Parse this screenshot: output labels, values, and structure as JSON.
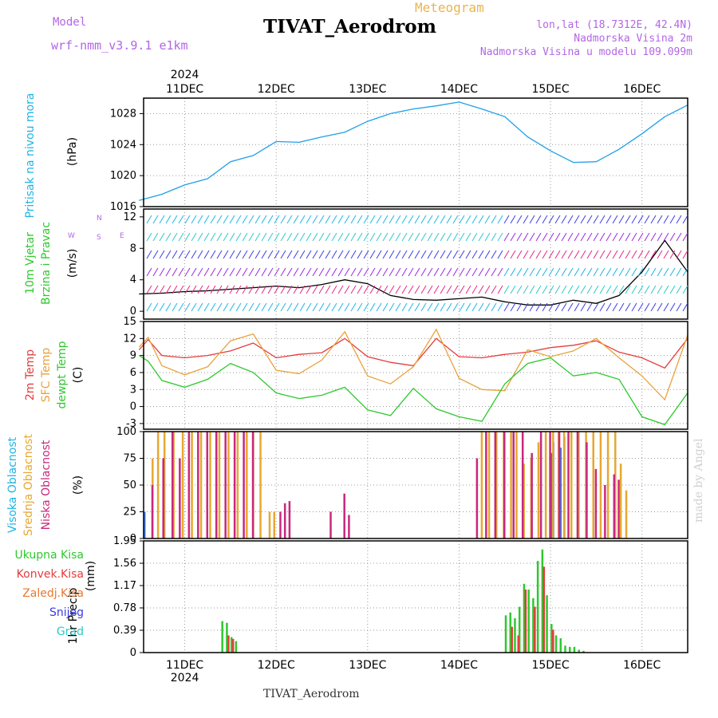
{
  "header": {
    "model_label": "Model",
    "model_version": "wrf-nmm_v3.9.1 e1km",
    "title": "TIVAT_Aerodrom",
    "subtitle": "Meteogram",
    "lonlat": "lon,lat (18.7312E, 42.4N)",
    "altitude": "Nadmorska Visina 2m",
    "model_altitude": "Nadmorska Visina u modelu 109.099m"
  },
  "footer": {
    "station": "TIVAT_Aerodrom",
    "credit": "made by Angel"
  },
  "chart_data": [
    {
      "type": "line",
      "ylabel": "Pritisak na nivou mora",
      "unit": "(hPa)",
      "x_labels": [
        "11DEC",
        "12DEC",
        "13DEC",
        "14DEC",
        "15DEC",
        "16DEC"
      ],
      "year_label": "2024",
      "ylim": [
        1016,
        1030
      ],
      "yticks": [
        1016,
        1020,
        1024,
        1028
      ],
      "series": [
        {
          "color": "#1ea0e8",
          "x": [
            10.5,
            10.75,
            11.0,
            11.25,
            11.5,
            11.75,
            12.0,
            12.25,
            12.5,
            12.75,
            13.0,
            13.25,
            13.5,
            13.75,
            14.0,
            14.25,
            14.5,
            14.75,
            15.0,
            15.25,
            15.5,
            15.75,
            16.0,
            16.25,
            16.5
          ],
          "y": [
            1016.8,
            1017.6,
            1018.8,
            1019.6,
            1021.8,
            1022.6,
            1024.4,
            1024.3,
            1025.0,
            1025.6,
            1027.0,
            1028.0,
            1028.6,
            1029.0,
            1029.5,
            1028.6,
            1027.6,
            1025.0,
            1023.2,
            1021.7,
            1021.8,
            1023.4,
            1025.4,
            1027.6,
            1029.1
          ]
        }
      ]
    },
    {
      "type": "line",
      "ylabel_lines": [
        "10m Vjetar",
        "Brzina i Pravac"
      ],
      "unit": "(m/s)",
      "compass_labels": {
        "north": "N",
        "south": "S",
        "west": "W",
        "east": "E"
      },
      "ylim": [
        -1,
        13
      ],
      "yticks": [
        0,
        4,
        8,
        12
      ],
      "series": [
        {
          "color": "#000000",
          "x": [
            10.5,
            10.75,
            11.0,
            11.25,
            11.5,
            11.75,
            12.0,
            12.25,
            12.5,
            12.75,
            13.0,
            13.25,
            13.5,
            13.75,
            14.0,
            14.25,
            14.5,
            14.75,
            15.0,
            15.25,
            15.5,
            15.75,
            16.0,
            16.25,
            16.5
          ],
          "y": [
            2.2,
            2.3,
            2.5,
            2.6,
            2.8,
            3.0,
            3.2,
            3.0,
            3.4,
            4.0,
            3.5,
            2.0,
            1.5,
            1.4,
            1.6,
            1.8,
            1.2,
            0.8,
            0.8,
            1.4,
            1.0,
            2.0,
            5.0,
            9.0,
            5.0
          ]
        }
      ]
    },
    {
      "type": "line",
      "ylabel_lines": [
        "2m Temp",
        "SFC Temp",
        "dewpt Temp"
      ],
      "unit": "(C)",
      "ylim": [
        -4,
        15
      ],
      "yticks": [
        -3,
        0,
        3,
        6,
        9,
        12,
        15
      ],
      "series": [
        {
          "name": "2m Temp",
          "color": "#e63c3c",
          "x": [
            10.5,
            10.6,
            10.75,
            11.0,
            11.25,
            11.5,
            11.75,
            12.0,
            12.25,
            12.5,
            12.75,
            13.0,
            13.25,
            13.5,
            13.75,
            14.0,
            14.25,
            14.5,
            14.75,
            15.0,
            15.25,
            15.5,
            15.75,
            16.0,
            16.25,
            16.5
          ],
          "y": [
            10.0,
            11.8,
            9.0,
            8.6,
            9.0,
            9.8,
            11.2,
            8.6,
            9.2,
            9.5,
            12.0,
            8.8,
            7.8,
            7.2,
            12.0,
            8.8,
            8.6,
            9.2,
            9.6,
            10.4,
            10.8,
            11.6,
            9.6,
            8.6,
            6.8,
            12.0
          ]
        },
        {
          "name": "SFC Temp",
          "color": "#e8a23c",
          "x": [
            10.5,
            10.6,
            10.75,
            11.0,
            11.25,
            11.5,
            11.75,
            12.0,
            12.25,
            12.5,
            12.75,
            13.0,
            13.25,
            13.5,
            13.75,
            14.0,
            14.25,
            14.5,
            14.75,
            15.0,
            15.25,
            15.5,
            15.75,
            16.0,
            16.25,
            16.5
          ],
          "y": [
            10.5,
            12.2,
            7.2,
            5.6,
            7.0,
            11.6,
            12.8,
            6.4,
            5.8,
            8.2,
            13.2,
            5.4,
            4.0,
            7.0,
            13.6,
            5.0,
            3.0,
            2.8,
            10.0,
            8.8,
            9.8,
            12.0,
            8.6,
            5.4,
            1.2,
            12.6
          ]
        },
        {
          "name": "dewpt Temp",
          "color": "#2ec82e",
          "x": [
            10.5,
            10.6,
            10.75,
            11.0,
            11.25,
            11.5,
            11.75,
            12.0,
            12.25,
            12.5,
            12.75,
            13.0,
            13.25,
            13.5,
            13.75,
            14.0,
            14.25,
            14.5,
            14.75,
            15.0,
            15.25,
            15.5,
            15.75,
            16.0,
            16.25,
            16.5
          ],
          "y": [
            9.0,
            8.0,
            4.6,
            3.4,
            4.8,
            7.6,
            6.0,
            2.4,
            1.4,
            2.0,
            3.4,
            -0.6,
            -1.6,
            3.2,
            -0.4,
            -1.8,
            -2.6,
            4.0,
            7.6,
            8.6,
            5.4,
            6.0,
            4.8,
            -1.8,
            -3.2,
            2.4
          ]
        }
      ]
    },
    {
      "type": "bar",
      "ylabel_lines": [
        "Visoka Oblacnost",
        "Srednja Oblacnost",
        "Niska Oblacnost"
      ],
      "unit": "(%)",
      "ylim": [
        0,
        100
      ],
      "yticks": [
        0,
        25,
        50,
        75,
        100
      ],
      "series": [
        {
          "name": "Visoka Oblacnost",
          "color": "#3c78e6",
          "x": [
            10.55,
            15.0,
            15.02,
            15.1,
            15.14
          ],
          "values": [
            25,
            80,
            90,
            85,
            95
          ]
        },
        {
          "name": "Srednja Oblacnost",
          "color": "#e6a830",
          "x": [
            10.62,
            10.68,
            10.75,
            10.85,
            10.95,
            11.05,
            11.15,
            11.25,
            11.35,
            11.45,
            11.55,
            11.65,
            11.72,
            11.8,
            11.9,
            11.95,
            14.22,
            14.3,
            14.38,
            14.46,
            14.54,
            14.6,
            14.68,
            14.76,
            14.84,
            14.92,
            15.0,
            15.06,
            15.12,
            15.2,
            15.28,
            15.36,
            15.44,
            15.52,
            15.6,
            15.68,
            15.74,
            15.8
          ],
          "values": [
            75,
            100,
            100,
            100,
            100,
            100,
            100,
            100,
            100,
            100,
            100,
            100,
            100,
            100,
            25,
            25,
            100,
            100,
            100,
            100,
            100,
            100,
            70,
            75,
            90,
            100,
            100,
            100,
            100,
            100,
            100,
            100,
            100,
            100,
            100,
            100,
            70,
            45
          ]
        },
        {
          "name": "Niska Oblacnost",
          "color": "#c8287d",
          "x": [
            10.6,
            10.72,
            10.82,
            10.9,
            11.0,
            11.1,
            11.2,
            11.3,
            11.4,
            11.5,
            11.6,
            11.7,
            12.0,
            12.05,
            12.1,
            12.55,
            12.7,
            12.75,
            14.15,
            14.25,
            14.35,
            14.45,
            14.55,
            14.65,
            14.75,
            14.85,
            14.95,
            15.05,
            15.15,
            15.25,
            15.35,
            15.45,
            15.55,
            15.65,
            15.7
          ],
          "values": [
            50,
            75,
            100,
            75,
            100,
            100,
            100,
            100,
            100,
            100,
            100,
            100,
            25,
            33,
            35,
            25,
            42,
            22,
            75,
            100,
            100,
            100,
            100,
            100,
            80,
            100,
            100,
            100,
            100,
            100,
            90,
            65,
            50,
            60,
            55
          ]
        }
      ]
    },
    {
      "type": "bar",
      "ylabel_lines": [
        "1hr Precip",
        "(mm)"
      ],
      "legend": [
        {
          "name": "Ukupna Kisa",
          "color": "#2ec82e"
        },
        {
          "name": "Konvek.Kisa",
          "color": "#e63c3c"
        },
        {
          "name": "Zaledj.Kisa",
          "color": "#e8782e"
        },
        {
          "name": "Snijeg",
          "color": "#3c3ce6"
        },
        {
          "name": "Grad",
          "color": "#2ec8c8"
        }
      ],
      "ylim": [
        0,
        1.95
      ],
      "yticks": [
        0,
        0.39,
        0.78,
        1.17,
        1.56,
        1.95
      ],
      "x_labels": [
        "11DEC",
        "12DEC",
        "13DEC",
        "14DEC",
        "15DEC",
        "16DEC"
      ],
      "year_label": "2024",
      "series": [
        {
          "name": "Ukupna Kisa",
          "color": "#2ec82e",
          "x": [
            11.4,
            11.45,
            11.5,
            11.55,
            14.5,
            14.55,
            14.6,
            14.65,
            14.7,
            14.75,
            14.8,
            14.85,
            14.9,
            14.95,
            15.0,
            15.05,
            15.1,
            15.15,
            15.2,
            15.25,
            15.3,
            15.35
          ],
          "values": [
            0.55,
            0.52,
            0.27,
            0.2,
            0.65,
            0.7,
            0.6,
            0.8,
            1.2,
            1.1,
            0.95,
            1.6,
            1.8,
            1.0,
            0.5,
            0.3,
            0.25,
            0.12,
            0.1,
            0.1,
            0.05,
            0.03
          ]
        },
        {
          "name": "Konvek.Kisa",
          "color": "#e63c3c",
          "x": [
            11.45,
            11.5,
            14.55,
            14.62,
            14.7,
            14.8,
            14.9,
            15.0
          ],
          "values": [
            0.3,
            0.24,
            0.45,
            0.3,
            1.1,
            0.8,
            1.5,
            0.4
          ]
        }
      ]
    }
  ]
}
